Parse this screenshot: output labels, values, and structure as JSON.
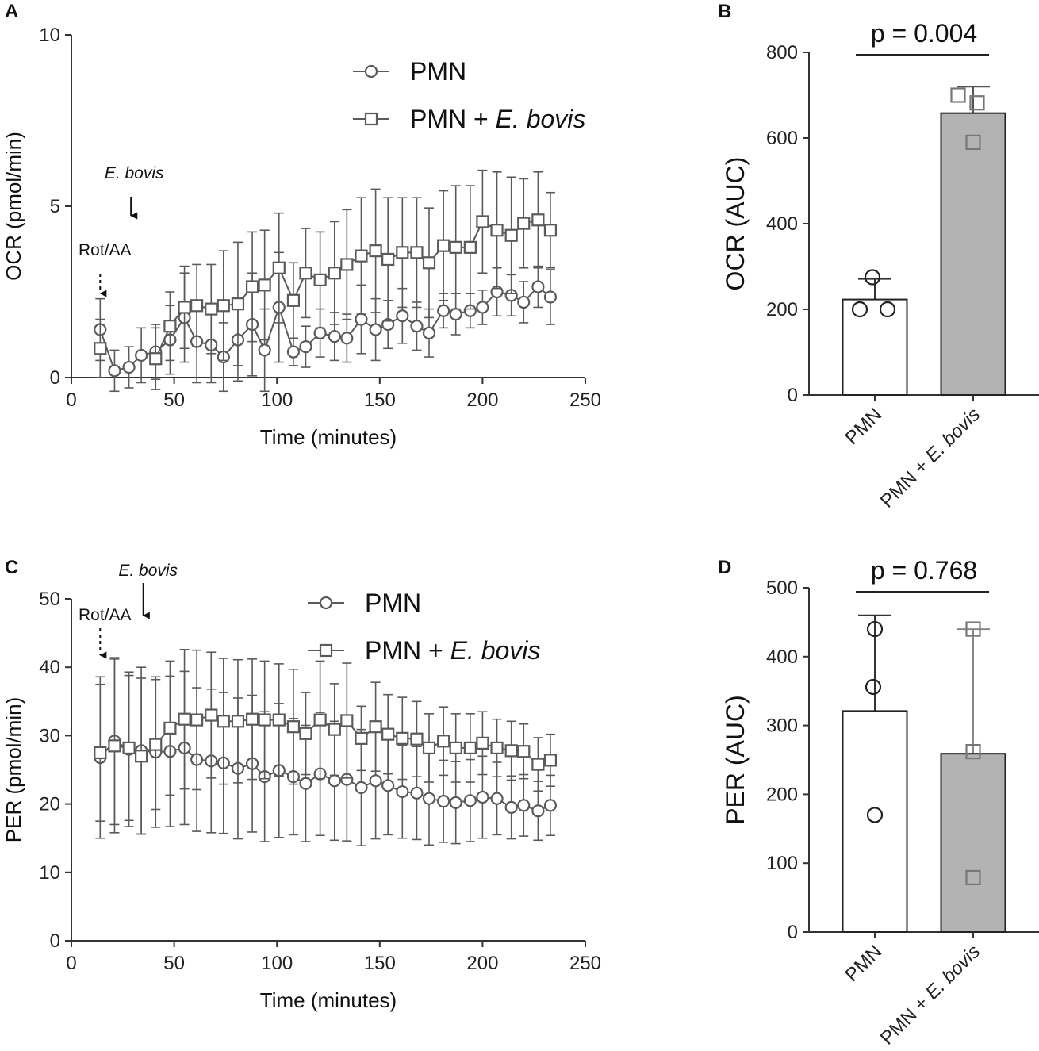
{
  "chart_data": [
    {
      "panel": "A",
      "type": "line",
      "xlabel": "Time (minutes)",
      "ylabel": "OCR (pmol/min)",
      "xlim": [
        0,
        250
      ],
      "ylim": [
        0,
        10
      ],
      "xticks": [
        "0",
        "50",
        "100",
        "150",
        "200",
        "250"
      ],
      "yticks": [
        "0",
        "5",
        "10"
      ],
      "grid": false,
      "legend_position": "top-right",
      "annotations": [
        {
          "text": "Rot/AA",
          "x": 14,
          "style": "dashed-arrow"
        },
        {
          "text": "E. bovis",
          "x": 29,
          "style": "solid-arrow"
        }
      ],
      "x": [
        14,
        21,
        28,
        34,
        41,
        48,
        55,
        61,
        68,
        74,
        81,
        88,
        94,
        101,
        108,
        114,
        121,
        128,
        134,
        141,
        148,
        154,
        161,
        168,
        174,
        181,
        187,
        194,
        200,
        207,
        214,
        220,
        227,
        233
      ],
      "series": [
        {
          "name": "PMN",
          "marker": "circle",
          "values": [
            1.4,
            0.2,
            0.3,
            0.65,
            0.75,
            1.1,
            1.75,
            1.05,
            0.95,
            0.6,
            1.1,
            1.55,
            0.8,
            2.05,
            0.75,
            0.9,
            1.3,
            1.2,
            1.15,
            1.7,
            1.4,
            1.55,
            1.8,
            1.5,
            1.3,
            1.95,
            1.85,
            1.95,
            2.05,
            2.5,
            2.4,
            2.2,
            2.65,
            2.35
          ],
          "errors": [
            0.9,
            0.6,
            0.6,
            0.8,
            0.8,
            1.0,
            1.3,
            1.2,
            1.1,
            1.0,
            1.2,
            1.5,
            1.2,
            1.6,
            0.4,
            0.6,
            0.7,
            0.7,
            0.7,
            1.0,
            0.9,
            0.7,
            0.8,
            0.7,
            0.7,
            0.5,
            0.6,
            0.5,
            0.5,
            0.7,
            0.6,
            0.6,
            0.6,
            0.8
          ]
        },
        {
          "name": "PMN + E. bovis",
          "name_plain": "PMN + ",
          "name_italic": "E. bovis",
          "marker": "square",
          "values": [
            0.85,
            null,
            null,
            null,
            0.55,
            1.5,
            2.05,
            2.1,
            2.0,
            2.1,
            2.15,
            2.65,
            2.7,
            3.2,
            2.25,
            3.05,
            2.85,
            3.05,
            3.3,
            3.55,
            3.7,
            3.45,
            3.65,
            3.65,
            3.35,
            3.85,
            3.8,
            3.8,
            4.55,
            4.3,
            4.15,
            4.5,
            4.6,
            4.3
          ],
          "errors": [
            0.85,
            null,
            null,
            null,
            0.9,
            1.0,
            1.2,
            1.2,
            1.3,
            1.6,
            1.8,
            1.6,
            1.6,
            1.6,
            1.1,
            1.3,
            1.4,
            1.5,
            1.6,
            1.7,
            1.8,
            1.8,
            1.6,
            1.6,
            1.6,
            1.6,
            1.8,
            1.8,
            1.5,
            1.7,
            1.7,
            1.3,
            1.4,
            1.1
          ]
        }
      ]
    },
    {
      "panel": "B",
      "type": "bar",
      "ylabel": "OCR (AUC)",
      "ylim": [
        0,
        800
      ],
      "yticks": [
        "0",
        "200",
        "400",
        "600",
        "800"
      ],
      "categories": [
        "PMN",
        "PMN + E. bovis"
      ],
      "category_plain": [
        "PMN",
        "PMN + "
      ],
      "category_italic": [
        "",
        "E. bovis"
      ],
      "values": [
        223,
        658
      ],
      "errors": [
        48,
        62
      ],
      "points": [
        [
          275,
          200,
          200
        ],
        [
          700,
          682,
          590
        ]
      ],
      "bar_colors": [
        "#ffffff",
        "#b3b3b3"
      ],
      "pvalue": "p = 0.004"
    },
    {
      "panel": "C",
      "type": "line",
      "xlabel": "Time (minutes)",
      "ylabel": "PER (pmol/min)",
      "xlim": [
        0,
        250
      ],
      "ylim": [
        0,
        50
      ],
      "xticks": [
        "0",
        "50",
        "100",
        "150",
        "200",
        "250"
      ],
      "yticks": [
        "0",
        "10",
        "20",
        "30",
        "40",
        "50"
      ],
      "grid": false,
      "legend_position": "top-right",
      "annotations": [
        {
          "text": "Rot/AA",
          "x": 14,
          "style": "dashed-arrow"
        },
        {
          "text": "E. bovis",
          "x": 35,
          "style": "solid-arrow"
        }
      ],
      "x": [
        14,
        21,
        28,
        34,
        41,
        48,
        55,
        61,
        68,
        74,
        81,
        88,
        94,
        101,
        108,
        114,
        121,
        128,
        134,
        141,
        148,
        154,
        161,
        168,
        174,
        181,
        187,
        194,
        200,
        207,
        214,
        220,
        227,
        233
      ],
      "series": [
        {
          "name": "PMN",
          "marker": "circle",
          "values": [
            26.8,
            29.2,
            28.0,
            27.8,
            27.6,
            27.7,
            28.2,
            26.5,
            26.3,
            26.0,
            25.2,
            25.9,
            24.0,
            24.9,
            24.0,
            23.0,
            24.4,
            23.4,
            23.6,
            22.4,
            23.4,
            22.7,
            21.8,
            21.6,
            20.8,
            20.4,
            20.2,
            20.5,
            21.0,
            20.8,
            19.5,
            19.8,
            19.0,
            19.8
          ],
          "errors": [
            11.8,
            12.2,
            11.3,
            12.2,
            11.0,
            11.0,
            11.2,
            10.5,
            10.5,
            10.3,
            10.3,
            10.0,
            9.5,
            9.8,
            8.5,
            8.5,
            9.0,
            8.7,
            9.0,
            8.5,
            8.5,
            7.2,
            6.8,
            6.8,
            6.8,
            6.0,
            6.0,
            6.0,
            6.0,
            5.3,
            4.6,
            4.5,
            4.3,
            4.4
          ]
        },
        {
          "name": "PMN + E. bovis",
          "name_plain": "PMN + ",
          "name_italic": "E. bovis",
          "marker": "square",
          "values": [
            27.5,
            28.5,
            28.2,
            27.0,
            28.7,
            31.1,
            32.4,
            32.3,
            33.0,
            32.1,
            32.1,
            32.4,
            32.3,
            32.3,
            31.3,
            30.3,
            32.3,
            30.9,
            32.2,
            29.6,
            31.3,
            30.2,
            29.6,
            29.5,
            28.2,
            29.2,
            28.2,
            28.2,
            28.9,
            28.2,
            27.8,
            27.7,
            25.8,
            26.4
          ],
          "errors": [
            10.0,
            12.7,
            10.6,
            11.4,
            9.5,
            9.8,
            10.2,
            10.2,
            9.2,
            9.2,
            9.0,
            8.8,
            8.6,
            8.2,
            8.4,
            6.0,
            8.6,
            6.7,
            8.4,
            4.7,
            6.5,
            5.8,
            6.0,
            5.5,
            5.0,
            5.0,
            5.0,
            5.0,
            4.6,
            4.2,
            4.3,
            4.0,
            3.9,
            3.8
          ]
        }
      ]
    },
    {
      "panel": "D",
      "type": "bar",
      "ylabel": "PER (AUC)",
      "ylim": [
        0,
        500
      ],
      "yticks": [
        "0",
        "100",
        "200",
        "300",
        "400",
        "500"
      ],
      "categories": [
        "PMN",
        "PMN + E. bovis"
      ],
      "category_plain": [
        "PMN",
        "PMN + "
      ],
      "category_italic": [
        "",
        "E. bovis"
      ],
      "values": [
        321,
        259
      ],
      "errors": [
        139,
        181
      ],
      "points": [
        [
          440,
          356,
          170
        ],
        [
          440,
          262,
          79
        ]
      ],
      "bar_colors": [
        "#ffffff",
        "#b3b3b3"
      ],
      "pvalue": "p = 0.768"
    }
  ]
}
